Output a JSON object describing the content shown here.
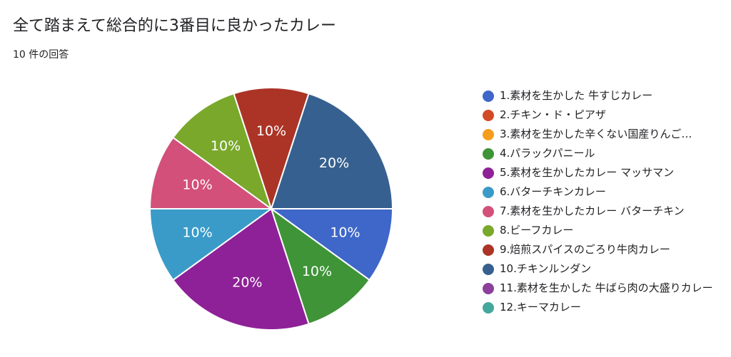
{
  "header": {
    "title": "全て踏まえて総合的に3番目に良かったカレー",
    "response_count": "10 件の回答"
  },
  "chart_data": {
    "type": "pie",
    "legend_position": "right",
    "categories": [
      "1.素材を生かした 牛すじカレー",
      "2.チキン・ド・ピアザ",
      "3.素材を生かした辛くない国産りんご…",
      "4.パラックパニール",
      "5.素材を生かしたカレー マッサマン",
      "6.バターチキンカレー",
      "7.素材を生かしたカレー バターチキン",
      "8.ビーフカレー",
      "9.焙煎スパイスのごろり牛肉カレー",
      "10.チキンルンダン",
      "11.素材を生かした 牛ばら肉の大盛りカレー",
      "12.キーマカレー"
    ],
    "values": [
      1,
      0,
      0,
      1,
      2,
      1,
      1,
      1,
      1,
      2,
      0,
      0
    ],
    "slice_labels": [
      "10%",
      "",
      "",
      "10%",
      "20%",
      "10%",
      "10%",
      "10%",
      "10%",
      "20%",
      "",
      ""
    ],
    "colors": [
      "#3f67c9",
      "#d34a26",
      "#f59d1d",
      "#3e9437",
      "#8e2197",
      "#3a9bc9",
      "#d3507a",
      "#79a82b",
      "#ab3426",
      "#36608f",
      "#8c3f9b",
      "#44a79c"
    ]
  }
}
